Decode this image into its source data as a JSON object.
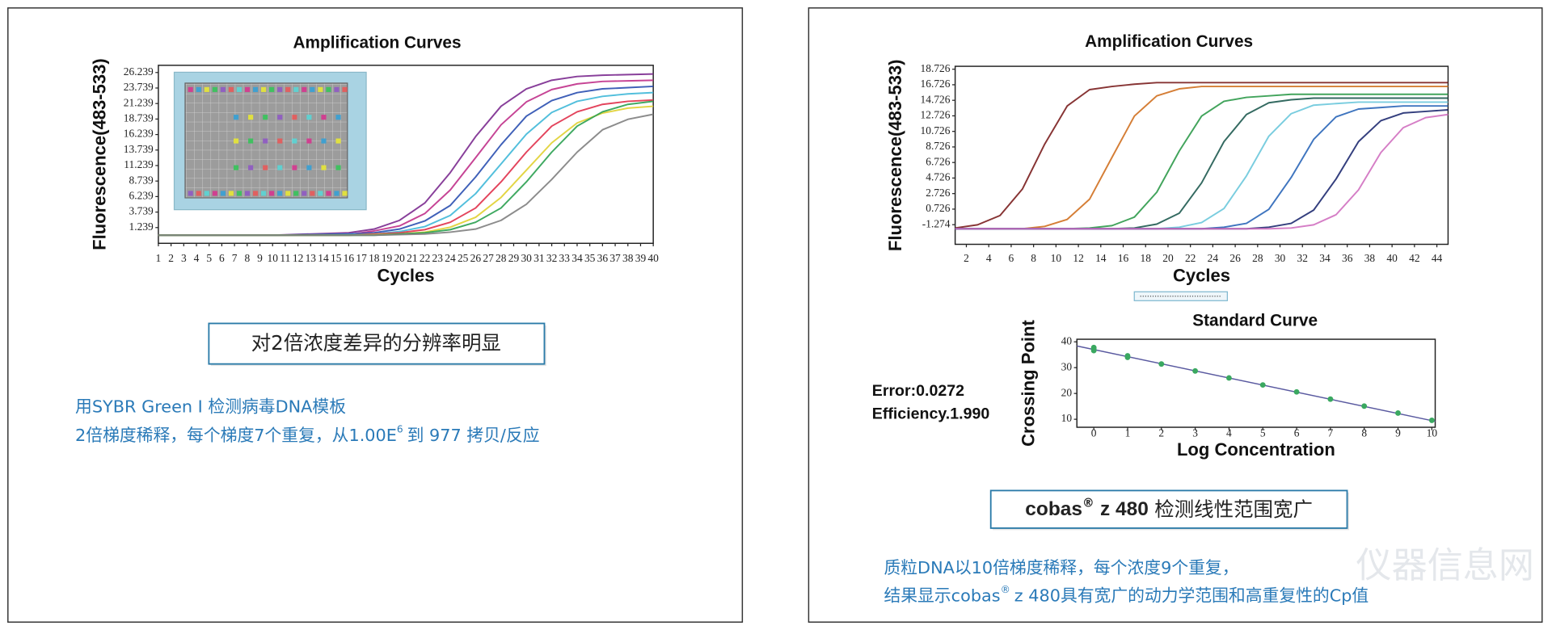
{
  "chart_data": [
    {
      "type": "line",
      "title": "Amplification Curves",
      "x_label": "Cycles",
      "y_label": "Fluorescence(483-533)",
      "xlim": [
        1,
        40
      ],
      "ylim": [
        -1.3,
        27.4
      ],
      "xticks": [
        1,
        2,
        3,
        4,
        5,
        6,
        7,
        8,
        9,
        10,
        11,
        12,
        13,
        14,
        15,
        16,
        17,
        18,
        19,
        20,
        21,
        22,
        23,
        24,
        25,
        26,
        27,
        28,
        29,
        30,
        31,
        32,
        33,
        34,
        35,
        36,
        37,
        38,
        39,
        40
      ],
      "yticks": [
        1.239,
        3.739,
        6.239,
        8.739,
        11.239,
        13.739,
        16.239,
        18.739,
        21.239,
        23.739,
        26.239
      ],
      "x": [
        1,
        10,
        16,
        18,
        20,
        22,
        24,
        26,
        28,
        30,
        32,
        34,
        36,
        38,
        40
      ],
      "series": [
        {
          "color": "#7b2a8f",
          "values": [
            0,
            0,
            0.4,
            1.0,
            2.4,
            5.2,
            10.1,
            15.9,
            20.8,
            23.6,
            25.0,
            25.6,
            25.8,
            25.9,
            26.0
          ]
        },
        {
          "color": "#c0308a",
          "values": [
            0,
            0,
            0.1,
            0.7,
            1.5,
            3.5,
            7.3,
            12.5,
            17.8,
            21.5,
            23.5,
            24.4,
            24.8,
            24.9,
            25.0
          ]
        },
        {
          "color": "#2a4fb0",
          "values": [
            0,
            0,
            0.2,
            0.4,
            1.0,
            2.3,
            4.8,
            9.4,
            14.6,
            19.2,
            21.7,
            23.0,
            23.6,
            23.8,
            24.0
          ]
        },
        {
          "color": "#3fb8d8",
          "values": [
            0,
            0,
            0.1,
            0.2,
            0.6,
            1.4,
            3.2,
            6.7,
            11.5,
            16.3,
            19.8,
            21.6,
            22.4,
            22.8,
            23.0
          ]
        },
        {
          "color": "#e0304a",
          "values": [
            0,
            0,
            0,
            0.2,
            0.4,
            0.9,
            2.1,
            4.4,
            8.6,
            13.4,
            17.6,
            19.9,
            21.1,
            21.6,
            21.8
          ]
        },
        {
          "color": "#e0d030",
          "values": [
            0,
            0,
            0,
            0.1,
            0.2,
            0.5,
            1.3,
            2.9,
            6.1,
            10.5,
            14.9,
            18.1,
            19.7,
            20.5,
            20.8
          ]
        },
        {
          "color": "#2aa050",
          "values": [
            0,
            0,
            0,
            0,
            0.2,
            0.4,
            0.9,
            2.1,
            4.4,
            8.6,
            13.4,
            17.6,
            19.9,
            21.1,
            21.6
          ]
        },
        {
          "color": "#808080",
          "values": [
            0,
            0,
            0,
            0,
            0.1,
            0.2,
            0.5,
            1.0,
            2.4,
            5.0,
            9.0,
            13.4,
            17.0,
            18.7,
            19.5
          ]
        }
      ]
    },
    {
      "type": "line",
      "title": "Amplification Curves",
      "x_label": "Cycles",
      "y_label": "Fluorescence(483-533)",
      "xlim": [
        1,
        45
      ],
      "ylim": [
        -3.8,
        19.1
      ],
      "xticks": [
        2,
        4,
        6,
        8,
        10,
        12,
        14,
        16,
        18,
        20,
        22,
        24,
        26,
        28,
        30,
        32,
        34,
        36,
        38,
        40,
        42,
        44
      ],
      "yticks": [
        -1.274,
        0.726,
        2.726,
        4.726,
        6.726,
        8.726,
        10.726,
        12.726,
        14.726,
        16.726,
        18.726
      ],
      "x": [
        1,
        3,
        5,
        7,
        9,
        11,
        13,
        15,
        17,
        19,
        21,
        23,
        25,
        27,
        29,
        31,
        33,
        35,
        37,
        39,
        41,
        43,
        45
      ],
      "series": [
        {
          "color": "#7a1e1e",
          "values": [
            -1.7,
            -1.3,
            -0.1,
            3.3,
            9.1,
            14.0,
            16.1,
            16.5,
            16.8,
            17.0,
            17.0,
            17.0,
            17.0,
            17.0,
            17.0,
            17.0,
            17.0,
            17.0,
            17.0,
            17.0,
            17.0,
            17.0,
            17.0
          ]
        },
        {
          "color": "#d07020",
          "values": [
            -1.8,
            -1.8,
            -1.8,
            -1.8,
            -1.5,
            -0.6,
            2.0,
            7.4,
            12.7,
            15.3,
            16.2,
            16.5,
            16.5,
            16.5,
            16.5,
            16.5,
            16.5,
            16.5,
            16.5,
            16.5,
            16.5,
            16.5,
            16.5
          ]
        },
        {
          "color": "#2e9a4a",
          "values": [
            -1.8,
            -1.8,
            -1.8,
            -1.8,
            -1.8,
            -1.8,
            -1.7,
            -1.4,
            -0.3,
            2.9,
            8.2,
            12.7,
            14.6,
            15.1,
            15.3,
            15.5,
            15.5,
            15.5,
            15.5,
            15.5,
            15.5,
            15.5,
            15.5
          ]
        },
        {
          "color": "#1e5a50",
          "values": [
            -1.8,
            -1.8,
            -1.8,
            -1.8,
            -1.8,
            -1.8,
            -1.8,
            -1.8,
            -1.7,
            -1.2,
            0.2,
            4.1,
            9.4,
            12.9,
            14.4,
            14.8,
            15.0,
            15.0,
            15.0,
            15.0,
            15.0,
            15.0,
            15.0
          ]
        },
        {
          "color": "#6cc8dc",
          "values": [
            -1.8,
            -1.8,
            -1.8,
            -1.8,
            -1.8,
            -1.8,
            -1.8,
            -1.8,
            -1.8,
            -1.8,
            -1.6,
            -1.0,
            0.8,
            5.0,
            10.1,
            13.0,
            14.1,
            14.3,
            14.5,
            14.5,
            14.5,
            14.5,
            14.5
          ]
        },
        {
          "color": "#2a66b8",
          "values": [
            -1.8,
            -1.8,
            -1.8,
            -1.8,
            -1.8,
            -1.8,
            -1.8,
            -1.8,
            -1.8,
            -1.8,
            -1.8,
            -1.8,
            -1.6,
            -1.1,
            0.7,
            4.8,
            9.7,
            12.6,
            13.6,
            13.8,
            14.0,
            14.0,
            14.0
          ]
        },
        {
          "color": "#1e2a70",
          "values": [
            -1.8,
            -1.8,
            -1.8,
            -1.8,
            -1.8,
            -1.8,
            -1.8,
            -1.8,
            -1.8,
            -1.8,
            -1.8,
            -1.8,
            -1.8,
            -1.8,
            -1.6,
            -1.1,
            0.6,
            4.6,
            9.4,
            12.1,
            13.1,
            13.3,
            13.5
          ]
        },
        {
          "color": "#d070c0",
          "values": [
            -1.8,
            -1.8,
            -1.8,
            -1.8,
            -1.8,
            -1.8,
            -1.8,
            -1.8,
            -1.8,
            -1.8,
            -1.8,
            -1.8,
            -1.8,
            -1.8,
            -1.8,
            -1.7,
            -1.3,
            0.0,
            3.2,
            8.0,
            11.2,
            12.5,
            12.9
          ]
        }
      ]
    },
    {
      "type": "scatter",
      "title": "Standard Curve",
      "x_label": "Log Concentration",
      "y_label": "Crossing Point",
      "xlim": [
        -0.5,
        10.1
      ],
      "ylim": [
        6.9,
        41
      ],
      "xticks": [
        0,
        1,
        2,
        3,
        4,
        5,
        6,
        7,
        8,
        9,
        10
      ],
      "yticks": [
        10,
        20,
        30,
        40
      ],
      "series": [
        {
          "color": "#3aa860",
          "x": [
            0,
            0,
            0,
            1,
            1,
            2,
            3,
            4,
            5,
            6,
            7,
            8,
            9,
            10
          ],
          "values": [
            36.6,
            37.3,
            37.8,
            34.0,
            34.6,
            31.4,
            28.7,
            26.0,
            23.3,
            20.6,
            17.8,
            15.1,
            12.4,
            9.6
          ]
        }
      ],
      "trendline": {
        "color": "#5a5aa0",
        "x": [
          -0.5,
          10.1
        ],
        "values": [
          38.4,
          9.2
        ]
      }
    }
  ],
  "left_caption_box": "对2倍浓度差异的分辨率明显",
  "left_notes": {
    "line1": "用SYBR Green I 检测病毒DNA模板",
    "line2_pre": "2倍梯度稀释，每个梯度7个重复，从1.00E",
    "line2_sup": "6",
    "line2_post": "到 977 拷贝/反应"
  },
  "standard_curve_stats": {
    "error": "Error:0.0272",
    "efficiency": "Efficiency.1.990"
  },
  "right_caption_box": {
    "brand": "cobas",
    "reg": "®",
    "model": "z 480",
    "text": "检测线性范围宽广"
  },
  "right_notes": {
    "line1": "质粒DNA以10倍梯度稀释，每个浓度9个重复，",
    "line2_pre": "结果显示cobas",
    "line2_sup": "®",
    "line2_post": "z 480具有宽广的动力学范围和高重复性的Cp值"
  },
  "watermark": "仪器信息网"
}
